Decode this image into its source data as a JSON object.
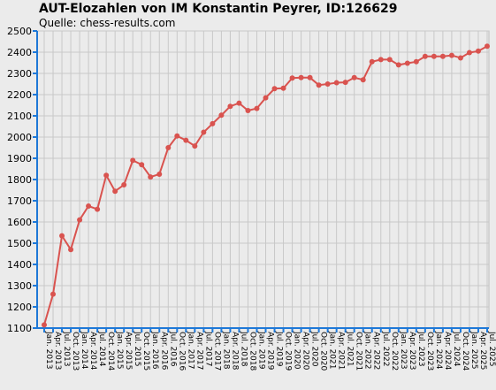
{
  "title": "AUT-Elozahlen von IM Konstantin Peyrer, ID:126629",
  "subtitle": "Quelle: chess-results.com",
  "colors": {
    "line": "#d9534f",
    "axis": "#1e78d7",
    "grid": "#c8c8c8",
    "plot_bg": "#ebebeb"
  },
  "chart_data": {
    "type": "line",
    "title": "AUT-Elozahlen von IM Konstantin Peyrer, ID:126629",
    "xlabel": "",
    "ylabel": "",
    "ylim": [
      1100,
      2500
    ],
    "yticks": [
      1100,
      1200,
      1300,
      1400,
      1500,
      1600,
      1700,
      1800,
      1900,
      2000,
      2100,
      2200,
      2300,
      2400,
      2500
    ],
    "grid": true,
    "legend": "none",
    "categories": [
      "Jan. 2013",
      "Apr. 2013",
      "Jul. 2013",
      "Oct. 2013",
      "Jan. 2014",
      "Apr. 2014",
      "Jul. 2014",
      "Oct. 2014",
      "Jan. 2015",
      "Apr. 2015",
      "Jul. 2015",
      "Oct. 2015",
      "Jan. 2016",
      "Apr. 2016",
      "Jul. 2016",
      "Oct. 2016",
      "Jan. 2017",
      "Apr. 2017",
      "Jul. 2017",
      "Oct. 2017",
      "Jan. 2018",
      "Apr. 2018",
      "Jul. 2018",
      "Oct. 2018",
      "Jan. 2019",
      "Apr. 2019",
      "Jul. 2019",
      "Oct. 2019",
      "Jan. 2020",
      "Apr. 2020",
      "Jul. 2020",
      "Oct. 2020",
      "Jan. 2021",
      "Apr. 2021",
      "Jul. 2021",
      "Oct. 2021",
      "Jan. 2022",
      "Apr. 2022",
      "Jul. 2022",
      "Oct. 2022",
      "Jan. 2023",
      "Apr. 2023",
      "Jul. 2023",
      "Oct. 2023",
      "Jan. 2024",
      "Apr. 2024",
      "Jul. 2024",
      "Oct. 2024",
      "Jan. 2025",
      "Apr. 2025",
      "Jul. 2025"
    ],
    "series": [
      {
        "values": [
          1115,
          1260,
          1535,
          1470,
          1610,
          1675,
          1660,
          1820,
          1745,
          1775,
          1890,
          1870,
          1812,
          1825,
          1950,
          2005,
          1985,
          1958,
          2023,
          2063,
          2103,
          2145,
          2160,
          2125,
          2135,
          2185,
          2228,
          2230,
          2278,
          2280,
          2280,
          2245,
          2250,
          2256,
          2258,
          2280,
          2270,
          2355,
          2365,
          2365,
          2340,
          2348,
          2355,
          2380,
          2380,
          2380,
          2385,
          2373,
          2398,
          2405,
          2428
        ]
      }
    ]
  }
}
